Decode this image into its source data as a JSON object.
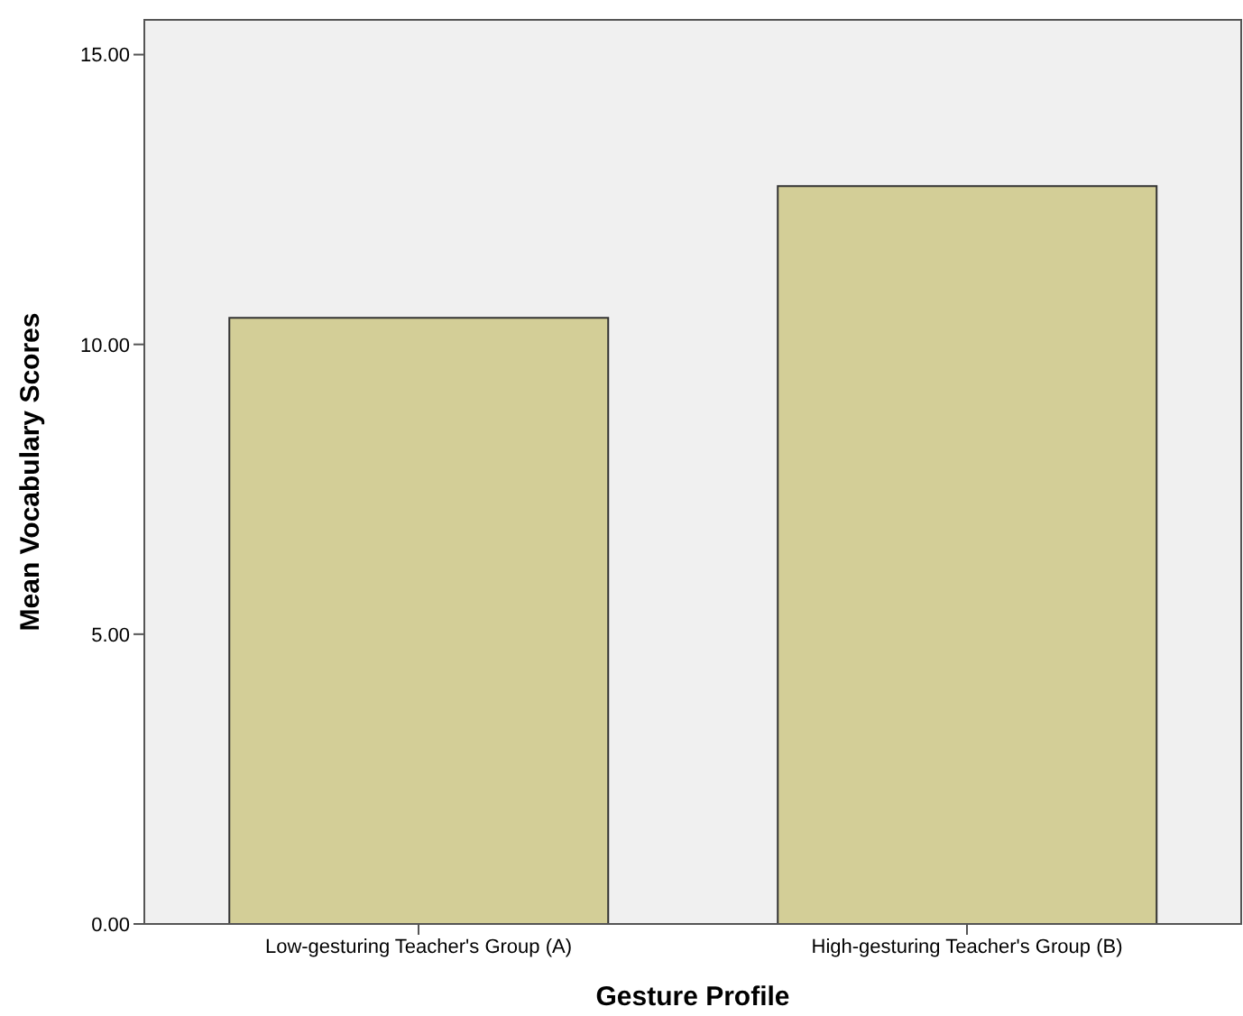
{
  "chart_data": {
    "type": "bar",
    "xlabel": "Gesture Profile",
    "ylabel": "Mean Vocabulary Scores",
    "categories": [
      "Low-gesturing Teacher's Group (A)",
      "High-gesturing Teacher's Group (B)"
    ],
    "values": [
      10.46,
      12.73
    ],
    "color": "#d3ce97",
    "ylim": [
      0,
      15.6
    ],
    "yticks": [
      {
        "value": 0,
        "label": "0.00"
      },
      {
        "value": 5,
        "label": "5.00"
      },
      {
        "value": 10,
        "label": "10.00"
      },
      {
        "value": 15,
        "label": "15.00"
      }
    ],
    "legend": false
  }
}
